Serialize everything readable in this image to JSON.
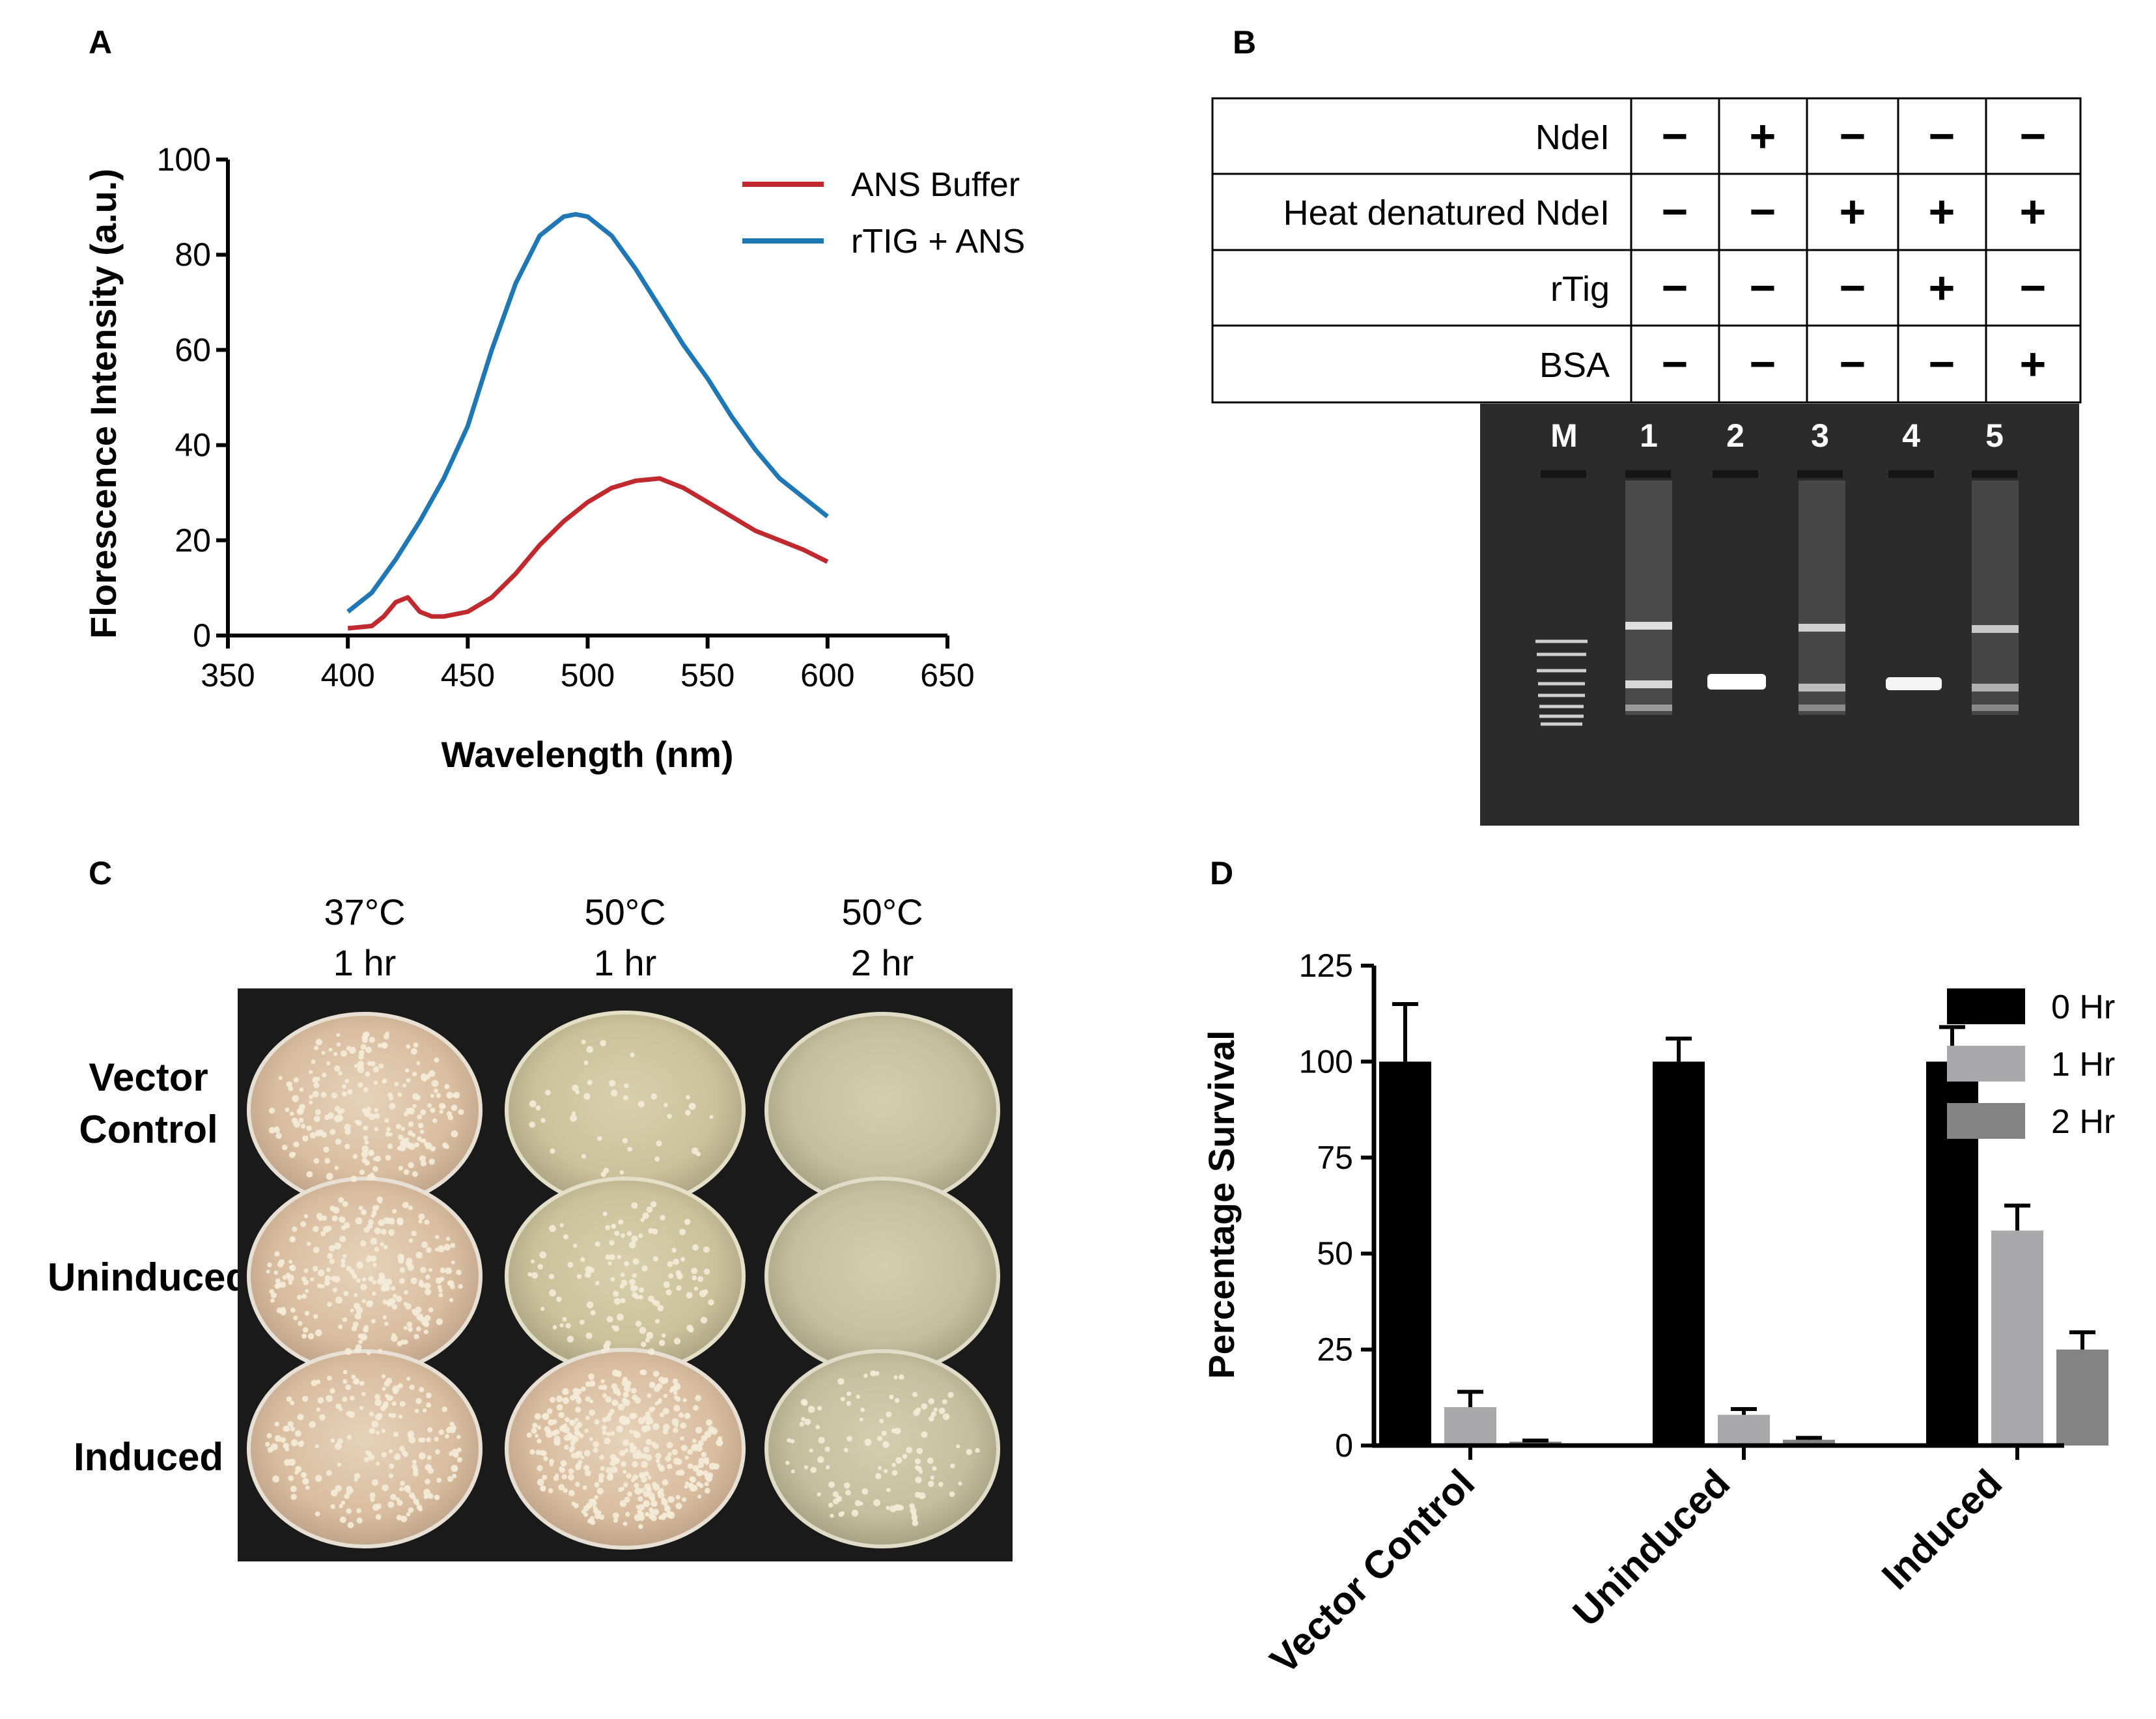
{
  "panels": {
    "A": {
      "letter": "A",
      "chart_data": {
        "type": "line",
        "xlabel": "Wavelength (nm)",
        "ylabel": "Florescence Intensity (a.u.)",
        "xlim": [
          350,
          650
        ],
        "ylim": [
          0,
          100
        ],
        "xticks": [
          "350",
          "400",
          "450",
          "500",
          "550",
          "600",
          "650"
        ],
        "yticks": [
          "0",
          "20",
          "40",
          "60",
          "80",
          "100"
        ],
        "series": [
          {
            "name": "ANS Buffer",
            "color": "#c0292e",
            "x": [
              400,
              410,
              415,
              420,
              425,
              430,
              435,
              440,
              450,
              460,
              470,
              480,
              490,
              500,
              510,
              520,
              530,
              540,
              550,
              560,
              570,
              580,
              590,
              600
            ],
            "y": [
              1.5,
              2,
              4,
              7,
              8,
              5,
              4,
              4,
              5,
              8,
              13,
              19,
              24,
              28,
              31,
              32.5,
              33,
              31,
              28,
              25,
              22,
              20,
              18,
              15.5
            ]
          },
          {
            "name": "rTIG + ANS",
            "color": "#1f77b4",
            "x": [
              400,
              410,
              420,
              430,
              440,
              450,
              460,
              470,
              480,
              490,
              495,
              500,
              510,
              520,
              530,
              540,
              550,
              560,
              570,
              580,
              590,
              600
            ],
            "y": [
              5,
              9,
              16,
              24,
              33,
              44,
              60,
              74,
              84,
              88,
              88.5,
              88,
              84,
              77,
              69,
              61,
              54,
              46,
              39,
              33,
              29,
              25
            ]
          }
        ]
      }
    },
    "B": {
      "letter": "B",
      "table": {
        "rows": [
          {
            "label": "NdeI",
            "cells": [
              "−",
              "+",
              "−",
              "−",
              "−"
            ]
          },
          {
            "label": "Heat denatured NdeI",
            "cells": [
              "−",
              "−",
              "+",
              "+",
              "+"
            ]
          },
          {
            "label": "rTig",
            "cells": [
              "−",
              "−",
              "−",
              "+",
              "−"
            ]
          },
          {
            "label": "BSA",
            "cells": [
              "−",
              "−",
              "−",
              "−",
              "+"
            ]
          }
        ]
      },
      "gel_lanes": [
        "M",
        "1",
        "2",
        "3",
        "4",
        "5"
      ]
    },
    "C": {
      "letter": "C",
      "columns": [
        {
          "line1": "37°C",
          "line2": "1 hr"
        },
        {
          "line1": "50°C",
          "line2": "1 hr"
        },
        {
          "line1": "50°C",
          "line2": "2 hr"
        }
      ],
      "rows": [
        {
          "line1": "Vector",
          "line2": "Control"
        },
        {
          "line1": "Uninduced",
          "line2": ""
        },
        {
          "line1": "Induced",
          "line2": ""
        }
      ]
    },
    "D": {
      "letter": "D",
      "chart_data": {
        "type": "bar",
        "ylabel": "Percentage  Survival",
        "ylim": [
          0,
          125
        ],
        "yticks": [
          "0",
          "25",
          "50",
          "75",
          "100",
          "125"
        ],
        "categories": [
          "Vector Control",
          "Uninduced",
          "Induced"
        ],
        "series": [
          {
            "name": "0 Hr",
            "color": "#000000",
            "values": [
              100,
              100,
              100
            ],
            "errors": [
              15,
              6,
              9
            ]
          },
          {
            "name": "1 Hr",
            "color": "#a9a9ab",
            "values": [
              10,
              8,
              56
            ],
            "errors": [
              4,
              1.5,
              6.5
            ]
          },
          {
            "name": "2 Hr",
            "color": "#838384",
            "values": [
              1,
              1.5,
              25
            ],
            "errors": [
              0.3,
              0.5,
              4.5
            ]
          }
        ]
      }
    }
  }
}
